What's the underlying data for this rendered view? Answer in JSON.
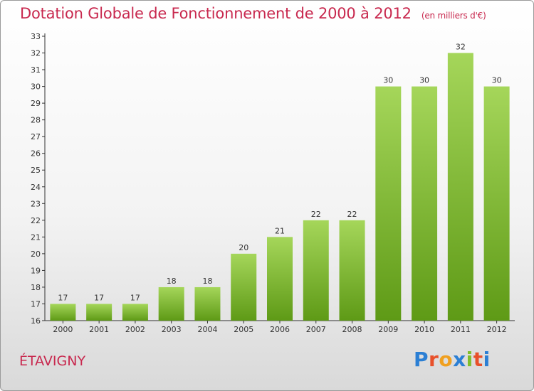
{
  "chart_data": {
    "type": "bar",
    "title": "Dotation Globale de Fonctionnement de 2000 à 2012",
    "subtitle": "(en milliers d'€)",
    "categories": [
      "2000",
      "2001",
      "2002",
      "2003",
      "2004",
      "2005",
      "2006",
      "2007",
      "2008",
      "2009",
      "2010",
      "2011",
      "2012"
    ],
    "values": [
      17,
      17,
      17,
      18,
      18,
      20,
      21,
      22,
      22,
      30,
      30,
      32,
      30
    ],
    "ylim": [
      16,
      33
    ],
    "yticks": [
      16,
      17,
      18,
      19,
      20,
      21,
      22,
      23,
      24,
      25,
      26,
      27,
      28,
      29,
      30,
      31,
      32,
      33
    ],
    "grid": false,
    "bar_color": "#7fbf2a"
  },
  "commune": "ÉTAVIGNY",
  "logo": {
    "text": "Proxiti",
    "letters": [
      {
        "ch": "P",
        "color": "#2b7fd4"
      },
      {
        "ch": "r",
        "color": "#e8502a"
      },
      {
        "ch": "o",
        "color": "#f0a020"
      },
      {
        "ch": "x",
        "color": "#2b7fd4"
      },
      {
        "ch": "i",
        "color": "#7fbf2a"
      },
      {
        "ch": "t",
        "color": "#e8502a"
      },
      {
        "ch": "i",
        "color": "#2b7fd4"
      }
    ]
  }
}
